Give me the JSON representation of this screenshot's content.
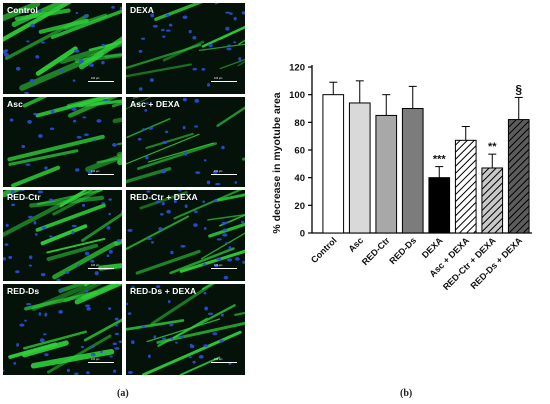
{
  "panels": [
    {
      "label": "Control"
    },
    {
      "label": "DEXA"
    },
    {
      "label": "Asc"
    },
    {
      "label": "Asc + DEXA"
    },
    {
      "label": "RED-Ctr"
    },
    {
      "label": "RED-Ctr + DEXA"
    },
    {
      "label": "RED-Ds"
    },
    {
      "label": "RED-Ds + DEXA"
    }
  ],
  "scale_label": "100 μm",
  "caption_a": "(a)",
  "caption_b": "(b)",
  "colors": {
    "fiber": "#2fd13a",
    "nuclei": "#2b4fd8",
    "background": "#05120a"
  },
  "chart_data": {
    "type": "bar",
    "ylabel": "% decrease in myotube area",
    "ylim": [
      0,
      120
    ],
    "yticks": [
      0,
      20,
      40,
      60,
      80,
      100,
      120
    ],
    "categories": [
      "Control",
      "Asc",
      "RED-Ctr",
      "RED-Ds",
      "DEXA",
      "Asc + DEXA",
      "RED-Ctr + DEXA",
      "RED-Ds + DEXA"
    ],
    "values": [
      100,
      94,
      85,
      90,
      40,
      67,
      47,
      82
    ],
    "errors": [
      9,
      16,
      15,
      16,
      8,
      10,
      10,
      16
    ],
    "annotations": [
      "",
      "",
      "",
      "",
      "***",
      "",
      "**",
      "§"
    ],
    "bar_colors": [
      "#ffffff",
      "#d9d9d9",
      "#a8a8a8",
      "#7c7c7c",
      "#000000",
      "#ffffff",
      "#c8c8c8",
      "#5c5c5c"
    ],
    "hatched": [
      false,
      false,
      false,
      false,
      false,
      true,
      true,
      true
    ],
    "grid": false
  }
}
